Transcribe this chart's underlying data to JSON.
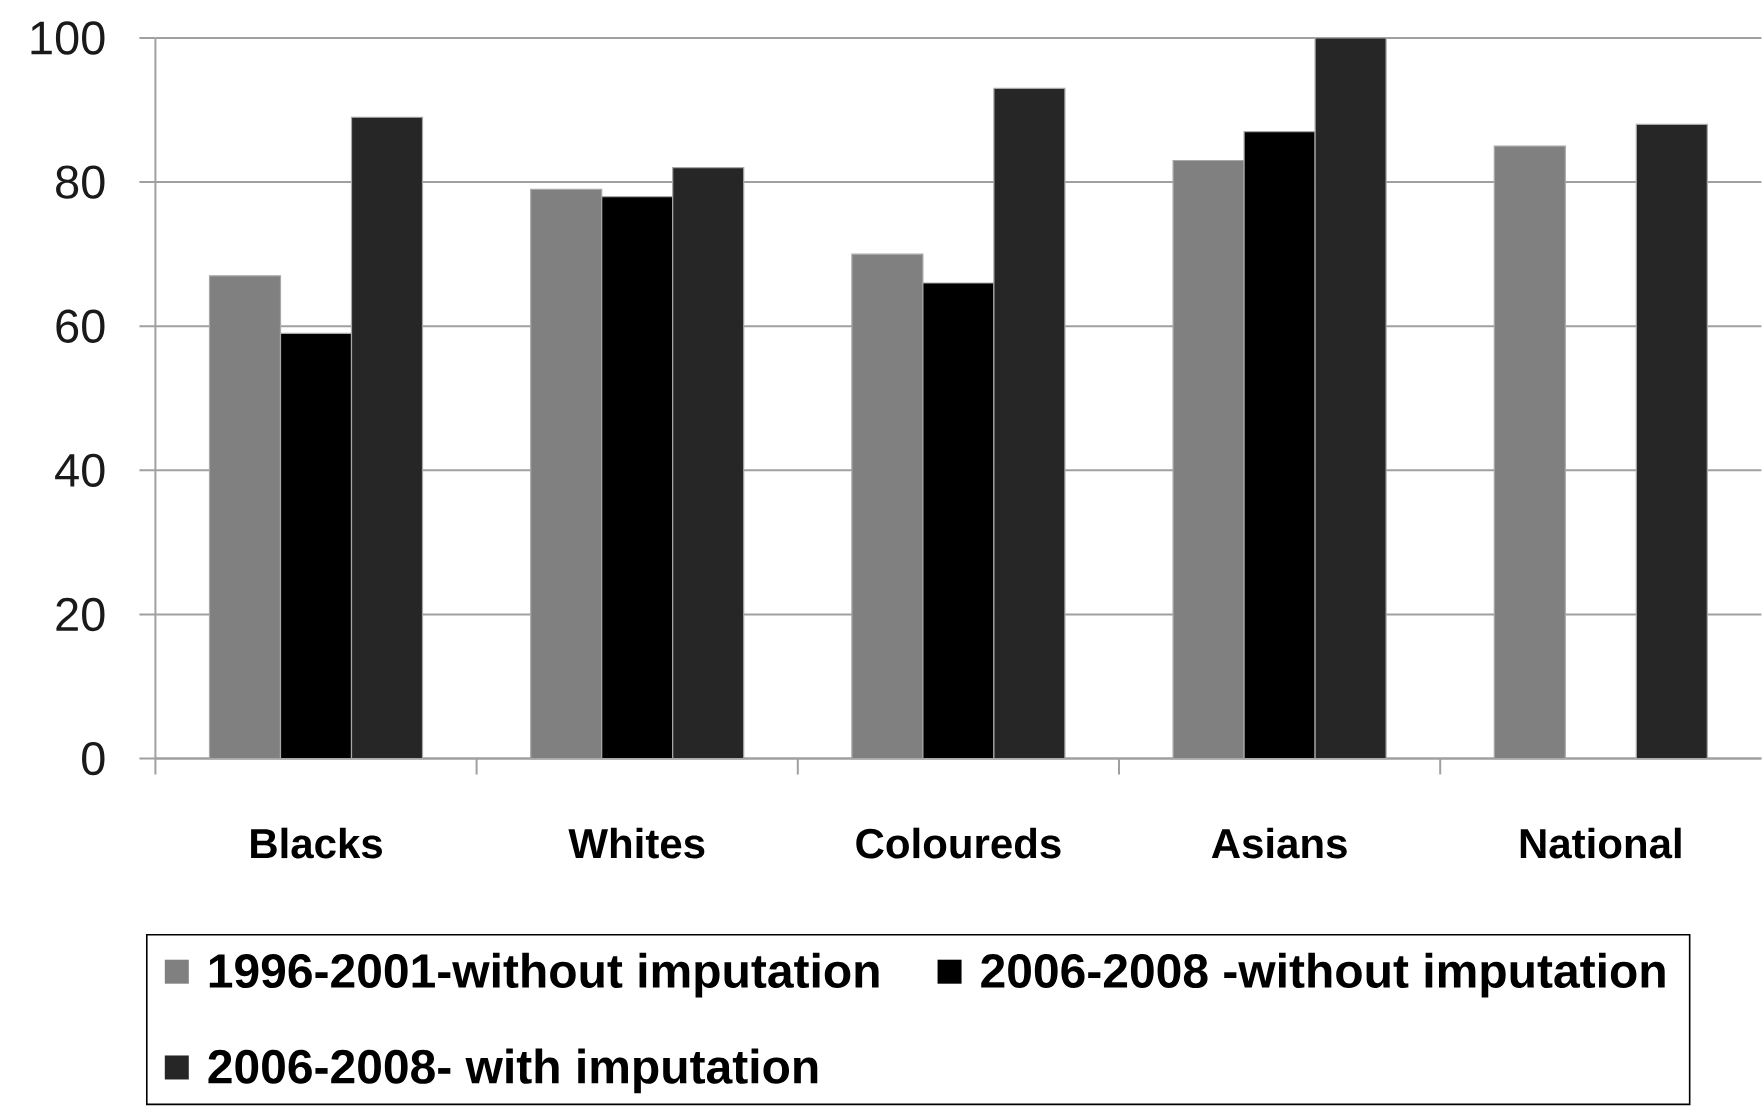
{
  "chart_data": {
    "type": "bar",
    "categories": [
      "Blacks",
      "Whites",
      "Coloureds",
      "Asians",
      "National"
    ],
    "series": [
      {
        "name": "1996-2001-without imputation",
        "color": "#808080",
        "values": [
          67,
          79,
          70,
          83,
          85
        ]
      },
      {
        "name": "2006-2008 -without imputation",
        "color": "#000000",
        "values": [
          59,
          78,
          66,
          87,
          null
        ]
      },
      {
        "name": "2006-2008- with imputation",
        "color": "#262626",
        "values": [
          89,
          82,
          93,
          100,
          88
        ]
      }
    ],
    "ylim": [
      0,
      100
    ],
    "yticks": [
      0,
      20,
      40,
      60,
      80,
      100
    ],
    "grid": "y",
    "legend": "bottom"
  }
}
